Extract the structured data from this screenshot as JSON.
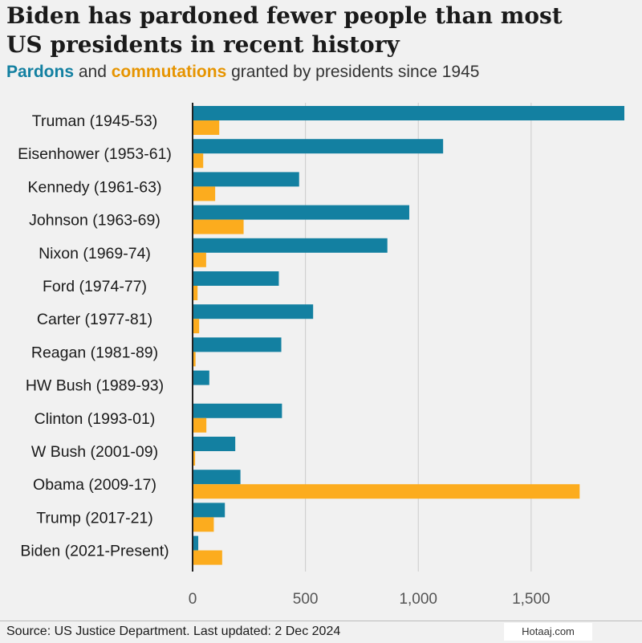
{
  "title_line1": "Biden has pardoned fewer people than most",
  "title_line2": "US presidents in recent history",
  "subtitle": {
    "pardons": "Pardons",
    "and": " and ",
    "commutations": "commutations",
    "rest": " granted by presidents since 1945"
  },
  "source": "Source: US Justice Department. Last updated: 2 Dec 2024",
  "watermark": "Hotaaj.com",
  "colors": {
    "pardons": "#1380a1",
    "commutations": "#fcac1e",
    "grid": "#cccccc",
    "axis": "#222222"
  },
  "chart_data": {
    "type": "bar",
    "orientation": "horizontal",
    "title": "Biden has pardoned fewer people than most US presidents in recent history",
    "subtitle": "Pardons and commutations granted by presidents since 1945",
    "categories": [
      "Truman (1945-53)",
      "Eisenhower (1953-61)",
      "Kennedy (1961-63)",
      "Johnson (1963-69)",
      "Nixon (1969-74)",
      "Ford (1974-77)",
      "Carter (1977-81)",
      "Reagan (1981-89)",
      "HW Bush (1989-93)",
      "Clinton (1993-01)",
      "W Bush (2001-09)",
      "Obama (2009-17)",
      "Trump (2017-21)",
      "Biden (2021-Present)"
    ],
    "series": [
      {
        "name": "Pardons",
        "values": [
          1913,
          1110,
          472,
          960,
          863,
          382,
          534,
          393,
          74,
          396,
          189,
          212,
          143,
          25
        ]
      },
      {
        "name": "Commutations",
        "values": [
          118,
          47,
          100,
          226,
          60,
          22,
          29,
          13,
          3,
          61,
          11,
          1715,
          94,
          131
        ]
      }
    ],
    "xlim": [
      0,
      1913
    ],
    "xticks": [
      0,
      500,
      1000,
      1500
    ],
    "xtick_labels": [
      "0",
      "500",
      "1,000",
      "1,500"
    ],
    "grid": true
  }
}
